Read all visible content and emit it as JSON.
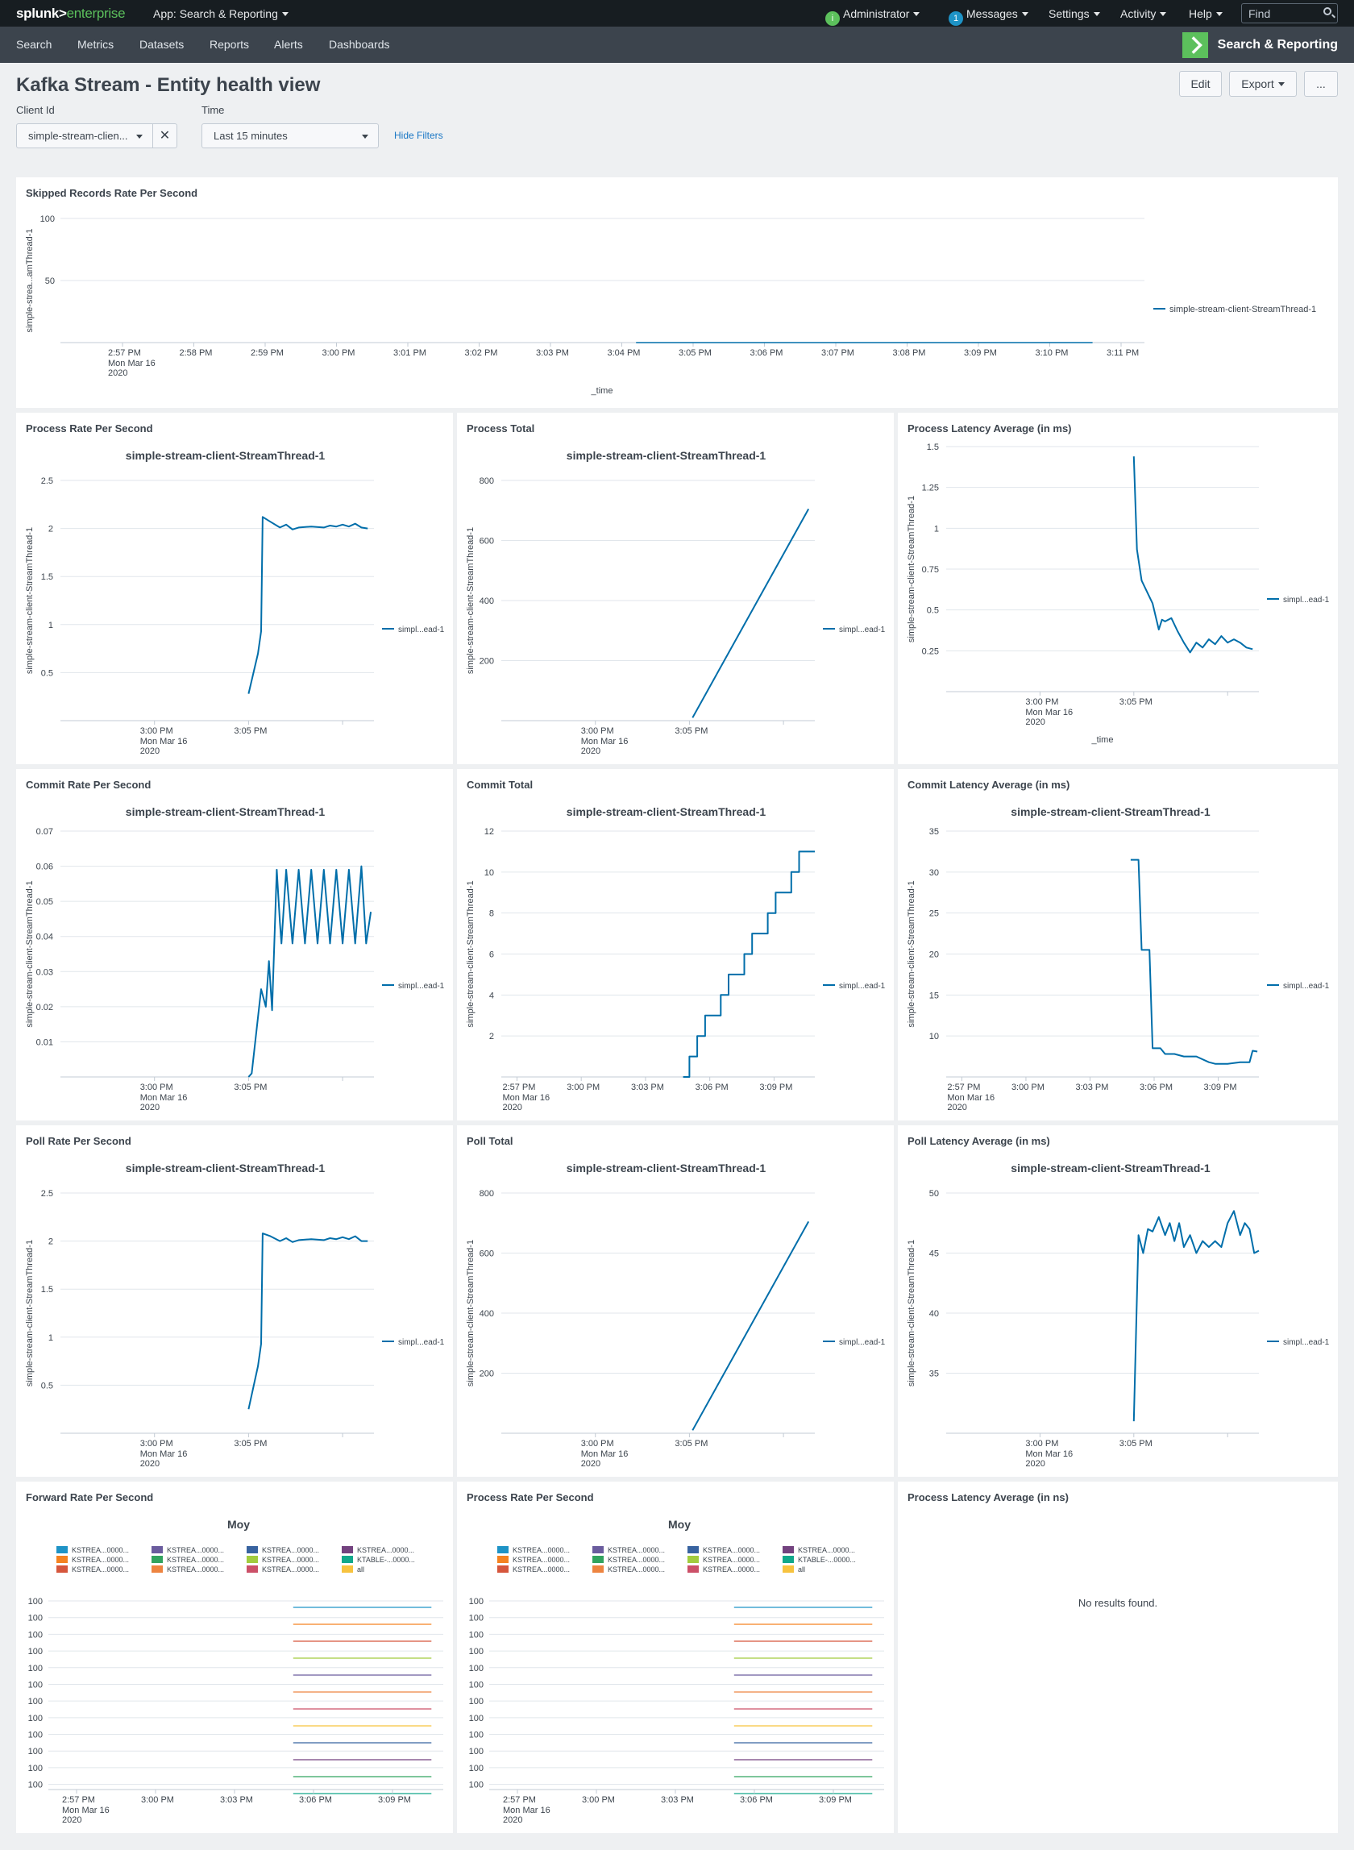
{
  "topbar": {
    "logo_left": "splunk>",
    "logo_right": "enterprise",
    "app_label": "App: Search & Reporting",
    "status_dot": "i",
    "user": "Administrator",
    "messages_count": "1",
    "messages": "Messages",
    "settings": "Settings",
    "activity": "Activity",
    "help": "Help",
    "find_placeholder": "Find"
  },
  "nav": {
    "items": [
      "Search",
      "Metrics",
      "Datasets",
      "Reports",
      "Alerts",
      "Dashboards"
    ],
    "brand": "Search & Reporting"
  },
  "dashboard": {
    "title": "Kafka Stream - Entity health view",
    "edit": "Edit",
    "export": "Export",
    "more": "...",
    "filters": {
      "client_label": "Client Id",
      "client_value": "simple-stream-clien...",
      "time_label": "Time",
      "time_value": "Last 15 minutes",
      "hide": "Hide Filters"
    }
  },
  "colors": {
    "series": "#006eaa",
    "link": "#1a77c5",
    "brand": "#5cc05c"
  },
  "time_ticks": {
    "p1": [
      "2:57 PM",
      "2:58 PM",
      "2:59 PM",
      "3:00 PM",
      "3:01 PM",
      "3:02 PM",
      "3:03 PM",
      "3:04 PM",
      "3:05 PM",
      "3:06 PM",
      "3:07 PM",
      "3:08 PM",
      "3:09 PM",
      "3:10 PM",
      "3:11 PM"
    ],
    "two": [
      "3:00 PM",
      "3:05 PM"
    ],
    "five": [
      "2:57 PM",
      "3:00 PM",
      "3:03 PM",
      "3:06 PM",
      "3:09 PM"
    ],
    "date_line1": "Mon Mar 16",
    "date_line2": "2020"
  },
  "chart_data": [
    {
      "id": "skipped",
      "type": "line",
      "title": "Skipped Records Rate Per Second",
      "ylabel": "simple-strea...amThread-1",
      "xlabel": "_time",
      "legend": "simple-stream-client-StreamThread-1",
      "x_start": "2:56 PM",
      "x_end": "3:11 PM",
      "ylim": [
        0,
        100
      ],
      "yticks": [
        "100",
        "50"
      ],
      "x": [
        8.2,
        14.6
      ],
      "values": [
        0,
        0
      ]
    },
    {
      "id": "process_rate",
      "type": "line",
      "title": "Process Rate Per Second",
      "chart_title": "simple-stream-client-StreamThread-1",
      "ylabel": "simple-stream-client-StreamThread-1",
      "legend": "simpl...ead-1",
      "ylim": [
        0,
        2.5
      ],
      "yticks": [
        "2.5",
        "2",
        "1.5",
        "1",
        "0.5"
      ],
      "x": [
        0.6,
        0.63,
        0.64,
        0.645,
        0.67,
        0.7,
        0.72,
        0.74,
        0.76,
        0.8,
        0.84,
        0.86,
        0.88,
        0.9,
        0.92,
        0.94,
        0.96,
        0.98
      ],
      "values": [
        0.28,
        0.7,
        0.93,
        2.12,
        2.07,
        2.01,
        2.04,
        1.99,
        2.01,
        2.02,
        2.01,
        2.03,
        2.02,
        2.04,
        2.02,
        2.05,
        2.01,
        2.0
      ]
    },
    {
      "id": "process_total",
      "type": "line",
      "title": "Process Total",
      "chart_title": "simple-stream-client-StreamThread-1",
      "ylabel": "simple-stream-client-StreamThread-1",
      "legend": "simpl...ead-1",
      "ylim": [
        0,
        800
      ],
      "yticks": [
        "800",
        "600",
        "400",
        "200"
      ],
      "x": [
        0.61,
        0.98
      ],
      "values": [
        10,
        705
      ]
    },
    {
      "id": "process_latency",
      "type": "line",
      "title": "Process Latency Average (in ms)",
      "ylabel": "simple-stream-client-StreamThread-1",
      "xlabel": "_time",
      "legend": "simpl...ead-1",
      "ylim": [
        0,
        1.5
      ],
      "yticks": [
        "1.5",
        "1.25",
        "1",
        "0.75",
        "0.5",
        "0.25"
      ],
      "x": [
        0.6,
        0.61,
        0.625,
        0.64,
        0.66,
        0.68,
        0.69,
        0.7,
        0.72,
        0.74,
        0.76,
        0.78,
        0.8,
        0.82,
        0.84,
        0.86,
        0.88,
        0.9,
        0.92,
        0.94,
        0.96,
        0.98
      ],
      "values": [
        1.44,
        0.87,
        0.68,
        0.62,
        0.54,
        0.38,
        0.44,
        0.43,
        0.45,
        0.37,
        0.3,
        0.24,
        0.3,
        0.27,
        0.32,
        0.29,
        0.34,
        0.3,
        0.32,
        0.3,
        0.27,
        0.26
      ]
    },
    {
      "id": "commit_rate",
      "type": "line",
      "title": "Commit Rate Per Second",
      "chart_title": "simple-stream-client-StreamThread-1",
      "ylabel": "simple-stream-client-StreamThread-1",
      "legend": "simpl...ead-1",
      "ylim": [
        0,
        0.07
      ],
      "yticks": [
        "0.07",
        "0.06",
        "0.05",
        "0.04",
        "0.03",
        "0.02",
        "0.01"
      ],
      "x": [
        0.6,
        0.61,
        0.63,
        0.64,
        0.655,
        0.665,
        0.675,
        0.69,
        0.7,
        0.705,
        0.72,
        0.74,
        0.76,
        0.78,
        0.8,
        0.82,
        0.84,
        0.86,
        0.88,
        0.9,
        0.92,
        0.94,
        0.96,
        0.975,
        0.99
      ],
      "values": [
        0,
        0.001,
        0.017,
        0.025,
        0.02,
        0.033,
        0.019,
        0.059,
        0.044,
        0.038,
        0.059,
        0.038,
        0.059,
        0.038,
        0.059,
        0.038,
        0.059,
        0.038,
        0.059,
        0.038,
        0.059,
        0.038,
        0.06,
        0.038,
        0.047
      ]
    },
    {
      "id": "commit_total",
      "type": "line",
      "title": "Commit Total",
      "chart_title": "simple-stream-client-StreamThread-1",
      "ylabel": "simple-stream-client-StreamThread-1",
      "legend": "simpl...ead-1",
      "ylim": [
        0,
        12
      ],
      "yticks": [
        "12",
        "10",
        "8",
        "6",
        "4",
        "2"
      ],
      "step": true,
      "x": [
        0.58,
        0.6,
        0.625,
        0.65,
        0.675,
        0.7,
        0.725,
        0.75,
        0.775,
        0.8,
        0.825,
        0.85,
        0.875,
        0.9,
        0.925,
        0.95,
        0.975,
        1.0
      ],
      "values": [
        0,
        1,
        2,
        3,
        3,
        4,
        5,
        5,
        6,
        7,
        7,
        8,
        9,
        9,
        10,
        11,
        11,
        11
      ]
    },
    {
      "id": "commit_latency",
      "type": "line",
      "title": "Commit Latency Average (in ms)",
      "chart_title": "simple-stream-client-StreamThread-1",
      "ylabel": "simple-stream-client-StreamThread-1",
      "legend": "simpl...ead-1",
      "ylim": [
        5,
        35
      ],
      "yticks": [
        "35",
        "30",
        "25",
        "20",
        "15",
        "10"
      ],
      "x": [
        0.59,
        0.615,
        0.625,
        0.65,
        0.66,
        0.685,
        0.7,
        0.73,
        0.76,
        0.78,
        0.8,
        0.84,
        0.86,
        0.9,
        0.94,
        0.97,
        0.98,
        0.995
      ],
      "values": [
        31.5,
        31.5,
        20.5,
        20.5,
        8.5,
        8.5,
        7.8,
        7.8,
        7.5,
        7.5,
        7.5,
        6.8,
        6.6,
        6.6,
        6.8,
        6.8,
        8.2,
        8.1
      ]
    },
    {
      "id": "poll_rate",
      "type": "line",
      "title": "Poll Rate Per Second",
      "chart_title": "simple-stream-client-StreamThread-1",
      "ylabel": "simple-stream-client-StreamThread-1",
      "legend": "simpl...ead-1",
      "ylim": [
        0,
        2.5
      ],
      "yticks": [
        "2.5",
        "2",
        "1.5",
        "1",
        "0.5"
      ],
      "x": [
        0.6,
        0.63,
        0.64,
        0.645,
        0.67,
        0.7,
        0.72,
        0.74,
        0.76,
        0.8,
        0.84,
        0.86,
        0.88,
        0.9,
        0.92,
        0.94,
        0.96,
        0.98
      ],
      "values": [
        0.25,
        0.7,
        0.93,
        2.08,
        2.05,
        2.0,
        2.03,
        1.99,
        2.01,
        2.02,
        2.01,
        2.03,
        2.02,
        2.04,
        2.02,
        2.05,
        2.0,
        2.0
      ]
    },
    {
      "id": "poll_total",
      "type": "line",
      "title": "Poll Total",
      "chart_title": "simple-stream-client-StreamThread-1",
      "ylabel": "simple-stream-client-StreamThread-1",
      "legend": "simpl...ead-1",
      "ylim": [
        0,
        800
      ],
      "yticks": [
        "800",
        "600",
        "400",
        "200"
      ],
      "x": [
        0.61,
        0.98
      ],
      "values": [
        10,
        705
      ]
    },
    {
      "id": "poll_latency",
      "type": "line",
      "title": "Poll Latency Average (in ms)",
      "chart_title": "simple-stream-client-StreamThread-1",
      "ylabel": "simple-stream-client-StreamThread-1",
      "legend": "simpl...ead-1",
      "ylim": [
        30,
        50
      ],
      "yticks": [
        "50",
        "45",
        "40",
        "35"
      ],
      "x": [
        0.6,
        0.615,
        0.63,
        0.645,
        0.66,
        0.68,
        0.7,
        0.715,
        0.73,
        0.745,
        0.76,
        0.78,
        0.8,
        0.82,
        0.84,
        0.86,
        0.88,
        0.9,
        0.92,
        0.94,
        0.955,
        0.97,
        0.985,
        1.0
      ],
      "values": [
        31,
        46.5,
        45,
        47,
        46.8,
        48,
        46.5,
        47.5,
        46,
        47.5,
        45.5,
        46.5,
        45,
        46,
        45.5,
        46,
        45.5,
        47.5,
        48.5,
        46.5,
        47.5,
        47,
        45,
        45.2
      ]
    },
    {
      "id": "forward_rate",
      "type": "line",
      "title": "Forward Rate Per Second",
      "chart_title": "Moy",
      "legend_items": [
        "KSTREA...0000...",
        "KSTREA...0000...",
        "KSTREA...0000...",
        "KSTREA...0000...",
        "KSTREA...0000...",
        "KSTREA...0000...",
        "KSTREA...0000...",
        "KSTREA...0000...",
        "KSTREA...0000...",
        "KSTREA...0000...",
        "KTABLE-...0000...",
        "all"
      ],
      "legend_colors": [
        "#1e93c6",
        "#f58220",
        "#d6563c",
        "#6a5c9e",
        "#31a35f",
        "#ed8440",
        "#3863a0",
        "#a2cc3e",
        "#cc5068",
        "#73427f",
        "#11a88b",
        "#f7c33f"
      ],
      "yticks": [
        "100",
        "100",
        "100",
        "100",
        "100",
        "100",
        "100",
        "100",
        "100",
        "100",
        "100",
        "100"
      ],
      "line_colors": [
        "#1e93c6",
        "#f58220",
        "#d6563c",
        "#a2cc3e",
        "#6a5c9e",
        "#ed8440",
        "#cc5068",
        "#f7c33f",
        "#3863a0",
        "#73427f",
        "#31a35f",
        "#11a88b"
      ],
      "x_start": 0.62,
      "x_end": 0.97
    },
    {
      "id": "process_rate_moy",
      "type": "line",
      "title": "Process Rate Per Second",
      "chart_title": "Moy",
      "legend_items": [
        "KSTREA...0000...",
        "KSTREA...0000...",
        "KSTREA...0000...",
        "KSTREA...0000...",
        "KSTREA...0000...",
        "KSTREA...0000...",
        "KSTREA...0000...",
        "KSTREA...0000...",
        "KSTREA...0000...",
        "KSTREA...0000...",
        "KTABLE-...0000...",
        "all"
      ],
      "legend_colors": [
        "#1e93c6",
        "#f58220",
        "#d6563c",
        "#6a5c9e",
        "#31a35f",
        "#ed8440",
        "#3863a0",
        "#a2cc3e",
        "#cc5068",
        "#73427f",
        "#11a88b",
        "#f7c33f"
      ],
      "yticks": [
        "100",
        "100",
        "100",
        "100",
        "100",
        "100",
        "100",
        "100",
        "100",
        "100",
        "100",
        "100"
      ],
      "line_colors": [
        "#1e93c6",
        "#f58220",
        "#d6563c",
        "#a2cc3e",
        "#6a5c9e",
        "#ed8440",
        "#cc5068",
        "#f7c33f",
        "#3863a0",
        "#73427f",
        "#31a35f",
        "#11a88b"
      ],
      "x_start": 0.62,
      "x_end": 0.97
    },
    {
      "id": "process_latency_ns",
      "type": "line",
      "title": "Process Latency Average (in ns)",
      "empty_message": "No results found."
    }
  ]
}
